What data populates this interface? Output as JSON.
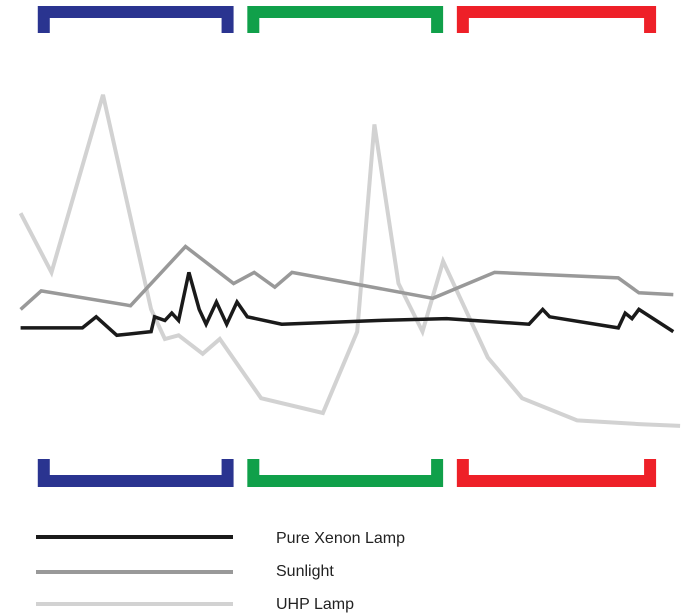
{
  "chart_data": {
    "type": "line",
    "title": "",
    "xlabel": "",
    "ylabel": "",
    "grid": false,
    "legend_position": "bottom-left",
    "x_range": [
      0,
      100
    ],
    "y_range": [
      0,
      100
    ],
    "band_brackets": [
      {
        "name": "blue",
        "color": "#2a3490",
        "x_start": 5.5,
        "x_end": 34
      },
      {
        "name": "green",
        "color": "#10a04a",
        "x_start": 36,
        "x_end": 64.5
      },
      {
        "name": "red",
        "color": "#ee2028",
        "x_start": 66.5,
        "x_end": 95.5
      }
    ],
    "series": [
      {
        "name": "Pure Xenon Lamp",
        "color": "#1a1a1a",
        "points": [
          [
            3,
            33
          ],
          [
            12,
            33
          ],
          [
            14,
            36
          ],
          [
            17,
            31
          ],
          [
            22,
            32
          ],
          [
            22.5,
            36
          ],
          [
            24,
            35
          ],
          [
            25,
            37
          ],
          [
            26,
            35
          ],
          [
            27.5,
            48
          ],
          [
            29,
            38
          ],
          [
            30,
            34
          ],
          [
            31.5,
            40
          ],
          [
            33,
            34
          ],
          [
            34.5,
            40
          ],
          [
            36,
            36
          ],
          [
            41,
            34
          ],
          [
            55,
            35
          ],
          [
            65,
            35.5
          ],
          [
            77,
            34
          ],
          [
            79,
            38
          ],
          [
            80,
            36
          ],
          [
            90,
            33
          ],
          [
            91,
            37
          ],
          [
            92,
            35.5
          ],
          [
            93,
            38
          ],
          [
            98,
            32
          ]
        ]
      },
      {
        "name": "Sunlight",
        "color": "#999999",
        "points": [
          [
            3,
            38
          ],
          [
            6,
            43
          ],
          [
            19,
            39
          ],
          [
            27,
            55
          ],
          [
            34,
            45
          ],
          [
            37,
            48
          ],
          [
            40,
            44
          ],
          [
            42.5,
            48
          ],
          [
            63,
            41
          ],
          [
            72,
            48
          ],
          [
            90,
            46.5
          ],
          [
            93,
            42.5
          ],
          [
            98,
            42
          ]
        ]
      },
      {
        "name": "UHP Lamp",
        "color": "#d2d2d2",
        "points": [
          [
            3,
            64
          ],
          [
            7.5,
            48
          ],
          [
            15,
            96
          ],
          [
            22,
            38
          ],
          [
            24,
            30
          ],
          [
            26,
            31
          ],
          [
            29.5,
            26
          ],
          [
            32,
            30
          ],
          [
            38,
            14
          ],
          [
            47,
            10
          ],
          [
            52,
            32
          ],
          [
            54.5,
            88
          ],
          [
            58,
            45
          ],
          [
            61.5,
            32
          ],
          [
            64.5,
            51
          ],
          [
            71,
            25
          ],
          [
            76,
            14
          ],
          [
            84,
            8
          ],
          [
            93,
            7
          ],
          [
            99,
            6.5
          ]
        ]
      }
    ]
  }
}
